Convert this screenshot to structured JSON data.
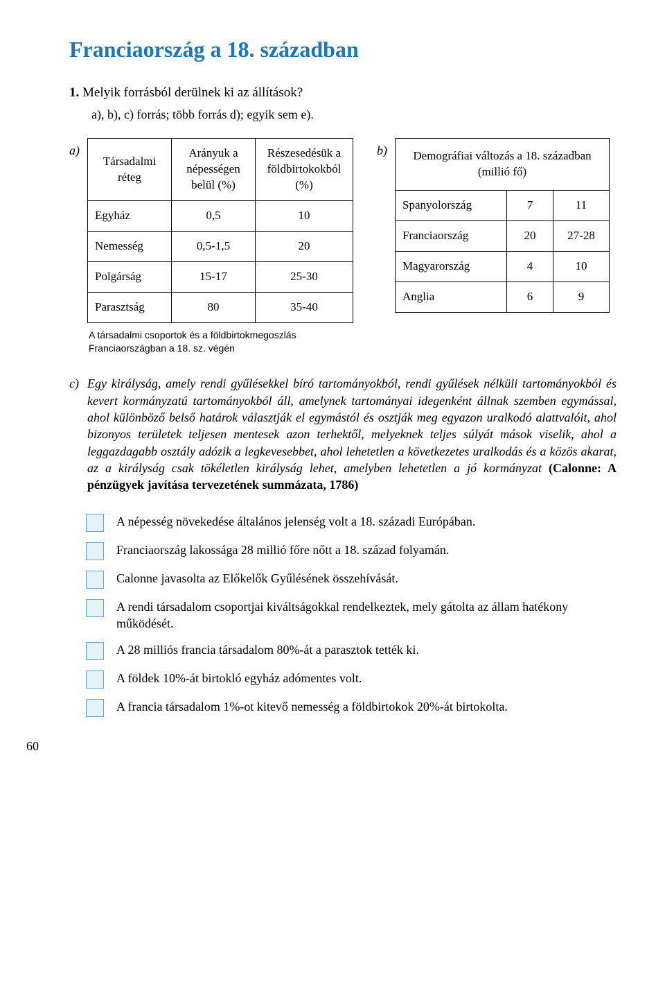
{
  "title": "Franciaország a 18. században",
  "q1": {
    "num": "1.",
    "text": "Melyik forrásból derülnek ki az állítások?"
  },
  "q1_sub": "a), b), c) forrás; több forrás d); egyik sem e).",
  "labels": {
    "a": "a)",
    "b": "b)",
    "c": "c)"
  },
  "table_a": {
    "columns": [
      "Társadalmi réteg",
      "Arányuk a népességen belül (%)",
      "Részesedésük a földbirtokokból (%)"
    ],
    "rows": [
      [
        "Egyház",
        "0,5",
        "10"
      ],
      [
        "Nemesség",
        "0,5-1,5",
        "20"
      ],
      [
        "Polgárság",
        "15-17",
        "25-30"
      ],
      [
        "Parasztság",
        "80",
        "35-40"
      ]
    ]
  },
  "table_b": {
    "header": "Demográfiai változás a 18. században (millió fő)",
    "rows": [
      [
        "Spanyolország",
        "7",
        "11"
      ],
      [
        "Franciaország",
        "20",
        "27-28"
      ],
      [
        "Magyarország",
        "4",
        "10"
      ],
      [
        "Anglia",
        "6",
        "9"
      ]
    ]
  },
  "caption_a": "A társadalmi csoportok és a földbirtokmegoszlás Franciaországban a 18. sz. végén",
  "para_c": "Egy királyság, amely rendi gyűlésekkel bíró tartományokból, rendi gyűlések nélküli tartományokból és kevert kormányzatú tartományokból áll, amelynek tartományai idegenként állnak szemben egymással, ahol különböző belső határok választják el egymástól és osztják meg egyazon uralkodó alattvalóit, ahol bizonyos területek teljesen mentesek azon terhektől, melyeknek teljes súlyát mások viselik, ahol a leggazdagabb osztály adózik a legkevesebbet, ahol lehetetlen a következetes uralkodás és a közös akarat, az a királyság csak tökéletlen királyság lehet, amelyben lehetetlen a jó kormányzat ",
  "citation_c": "(Calonne: A pénzügyek javítása tervezetének summázata, 1786)",
  "choices": [
    "A népesség növekedése általános jelenség volt a 18. századi Európában.",
    "Franciaország lakossága 28 millió főre nőtt a 18. század folyamán.",
    "Calonne javasolta az Előkelők Gyűlésének összehívását.",
    "A rendi társadalom csoportjai kiváltságokkal rendelkeztek, mely gátolta az állam hatékony működését.",
    "A 28 milliós francia társadalom 80%-át a parasztok tették ki.",
    "A földek 10%-át birtokló egyház adómentes volt.",
    "A francia társadalom 1%-ot kitevő nemesség a földbirtokok 20%-át birtokolta."
  ],
  "pagenum": "60"
}
